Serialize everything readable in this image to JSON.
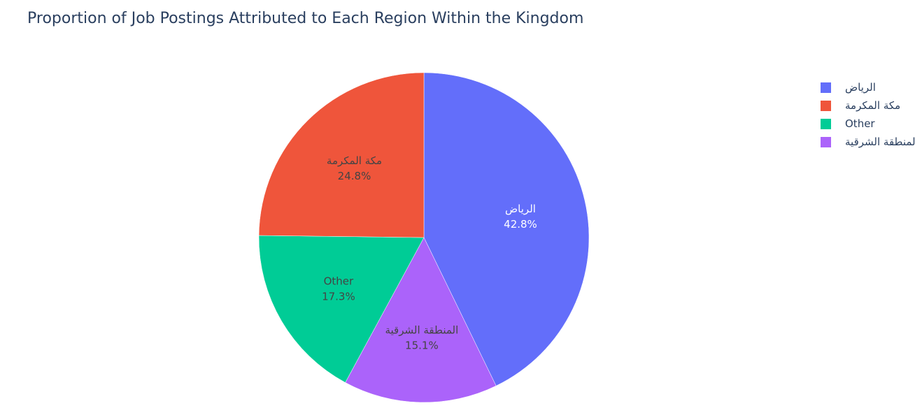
{
  "title": "Proportion of Job Postings Attributed to Each Region Within the Kingdom",
  "chart_data": {
    "type": "pie",
    "title": "Proportion of Job Postings Attributed to Each Region Within the Kingdom",
    "slices": [
      {
        "label": "الرياض",
        "value": 42.8,
        "percent_text": "42.8%",
        "color": "#636efa",
        "text_color": "#ffffff"
      },
      {
        "label": "المنطقة الشرقية",
        "value": 15.1,
        "percent_text": "15.1%",
        "color": "#ab63fa",
        "text_color": "#444444"
      },
      {
        "label": "Other",
        "value": 17.3,
        "percent_text": "17.3%",
        "color": "#00cc96",
        "text_color": "#444444"
      },
      {
        "label": "مكة المكرمة",
        "value": 24.8,
        "percent_text": "24.8%",
        "color": "#ef553b",
        "text_color": "#444444"
      }
    ],
    "direction": "clockwise",
    "start": "top",
    "legend": {
      "position": "right",
      "entries": [
        {
          "label": "الرياض",
          "color": "#636efa"
        },
        {
          "label": "مكة المكرمة",
          "color": "#ef553b"
        },
        {
          "label": "Other",
          "color": "#00cc96"
        },
        {
          "label": "المنطقة الشرقية",
          "color": "#ab63fa"
        }
      ]
    }
  }
}
